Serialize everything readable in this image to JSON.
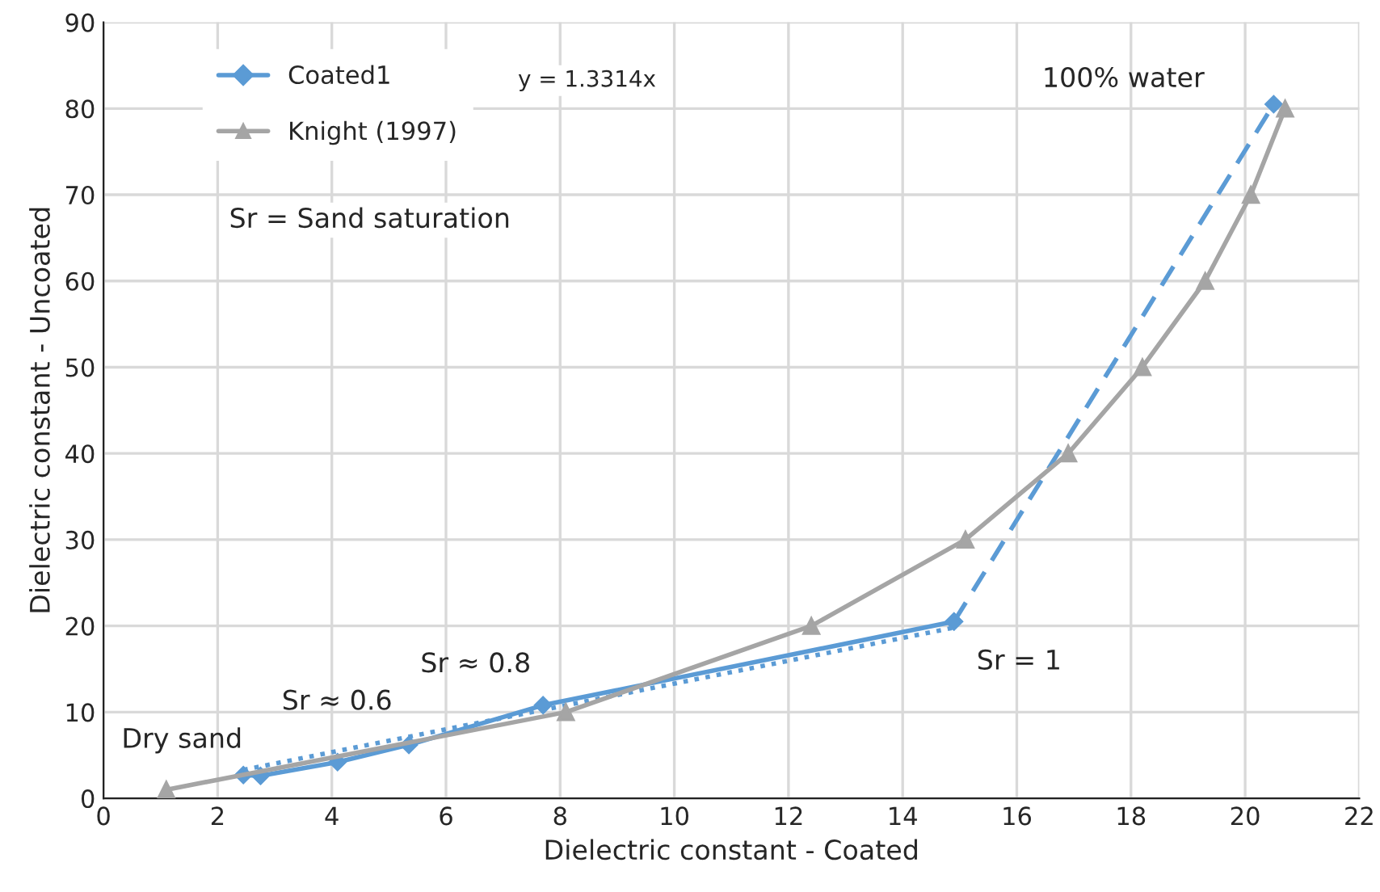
{
  "chart_data": {
    "type": "line",
    "xlabel": "Dielectric constant - Coated",
    "ylabel": "Dielectric constant - Uncoated",
    "xlim": [
      0,
      22
    ],
    "xticks": [
      0,
      2,
      4,
      6,
      8,
      10,
      12,
      14,
      16,
      18,
      20,
      22
    ],
    "ylim": [
      0,
      90
    ],
    "yticks": [
      0,
      10,
      20,
      30,
      40,
      50,
      60,
      70,
      80,
      90
    ],
    "grid": true,
    "legend": "top left",
    "series": [
      {
        "name": "Coated1",
        "color": "#5b9bd5",
        "marker": "diamond",
        "line_style": "solid",
        "x": [
          2.45,
          2.75,
          4.1,
          5.35,
          7.7,
          14.9
        ],
        "values": [
          2.7,
          2.6,
          4.2,
          6.2,
          10.8,
          20.5
        ]
      },
      {
        "color": "#5b9bd5",
        "marker": "diamond",
        "line_style": "dashed",
        "x": [
          14.9,
          20.5
        ],
        "values": [
          20.5,
          80.5
        ]
      },
      {
        "color": "#5b9bd5",
        "marker": "none",
        "line_style": "dotted",
        "x": [
          2.45,
          14.9
        ],
        "values": [
          3.3,
          19.8
        ]
      },
      {
        "name": "Knight (1997)",
        "color": "#a5a5a5",
        "marker": "triangle",
        "line_style": "solid",
        "x": [
          1.1,
          8.1,
          12.4,
          15.1,
          16.9,
          18.2,
          19.3,
          20.1,
          20.7
        ],
        "values": [
          1,
          10,
          20,
          30,
          40,
          50,
          60,
          70,
          80
        ]
      }
    ],
    "annotations": [
      {
        "text": "Dry sand",
        "x": 1.1,
        "y": 1
      },
      {
        "text": "Sr ≈ 0.6",
        "x": 5.35,
        "y": 6.2
      },
      {
        "text": "Sr ≈ 0.8",
        "x": 7.7,
        "y": 10.8
      },
      {
        "text": "Sr = 1",
        "x": 14.9,
        "y": 20.5
      },
      {
        "text": "100% water",
        "x": 20.5,
        "y": 80.5
      },
      "y = 1.3314x",
      "Sr = Sand saturation"
    ]
  }
}
